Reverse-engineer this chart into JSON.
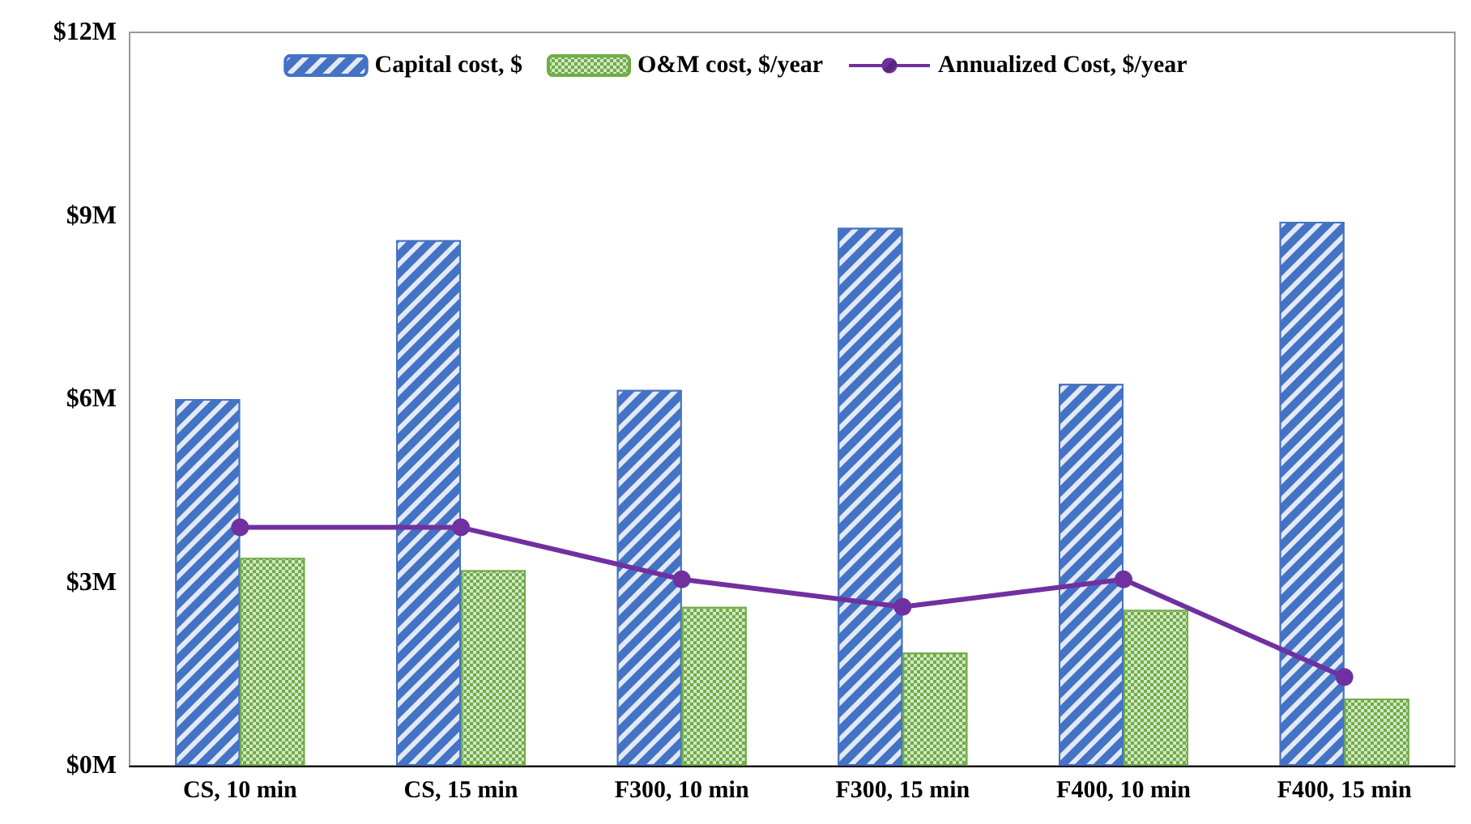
{
  "chart_data": {
    "type": "bar",
    "categories": [
      "CS, 10 min",
      "CS, 15 min",
      "F300, 10 min",
      "F300, 15 min",
      "F400, 10 min",
      "F400, 15 min"
    ],
    "series": [
      {
        "name": "Capital cost, $",
        "color": "#4472c4",
        "values": [
          6.0,
          8.6,
          6.15,
          8.8,
          6.25,
          8.9
        ]
      },
      {
        "name": "O&M cost, $/year",
        "color": "#70ad47",
        "values": [
          3.4,
          3.2,
          2.6,
          1.85,
          2.55,
          1.1
        ]
      },
      {
        "name": "Annualized Cost, $/year",
        "type": "line",
        "color": "#7030a0",
        "marker": "circle",
        "values": [
          3.9,
          3.9,
          3.05,
          2.6,
          3.05,
          1.45
        ]
      }
    ],
    "ylim": [
      0,
      12
    ],
    "yticks": [
      {
        "value": 0,
        "label": "$0M"
      },
      {
        "value": 3,
        "label": "$3M"
      },
      {
        "value": 6,
        "label": "$6M"
      },
      {
        "value": 9,
        "label": "$9M"
      },
      {
        "value": 12,
        "label": "$12M"
      }
    ],
    "legend": "top",
    "grid": false
  }
}
